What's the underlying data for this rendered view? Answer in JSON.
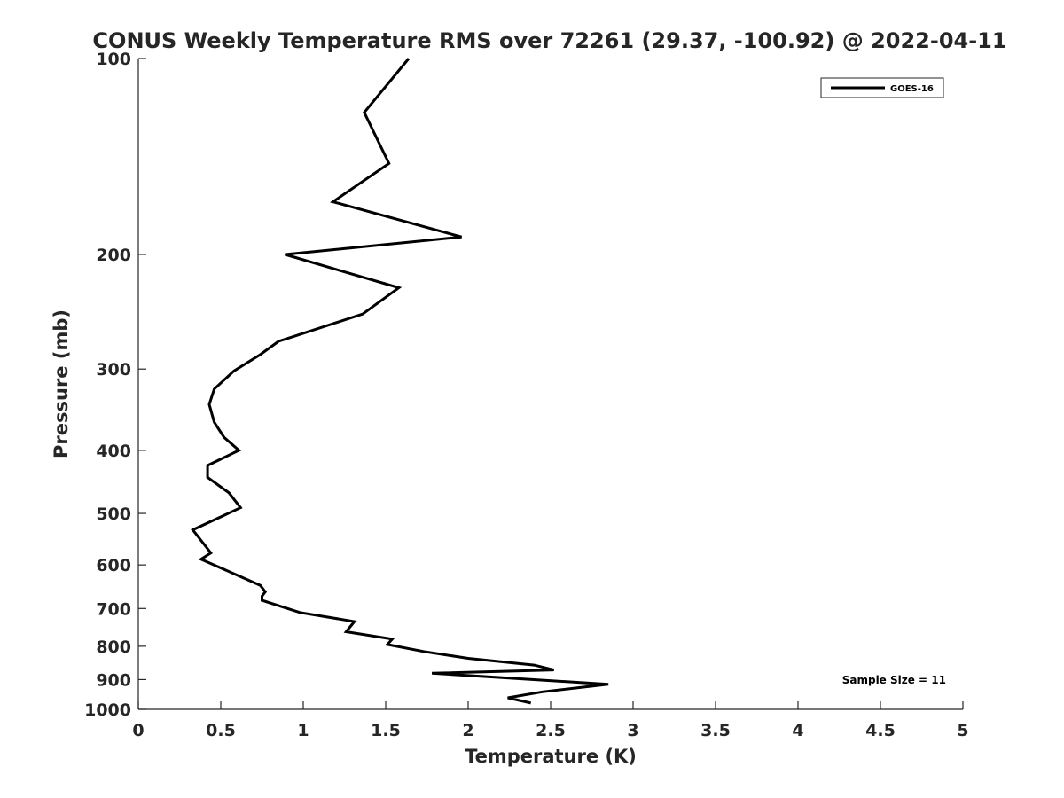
{
  "chart_data": {
    "type": "line",
    "title": "CONUS Weekly Temperature RMS over 72261 (29.37, -100.92) @ 2022-04-11",
    "xlabel": "Temperature (K)",
    "ylabel": "Pressure (mb)",
    "xlim": [
      0,
      5
    ],
    "ylim": [
      100,
      1000
    ],
    "y_scale": "log",
    "y_reversed": true,
    "grid": false,
    "legend_position": "top-right",
    "x_ticks": [
      "0",
      "0.5",
      "1",
      "1.5",
      "2",
      "2.5",
      "3",
      "3.5",
      "4",
      "4.5",
      "5"
    ],
    "x_tick_values": [
      0,
      0.5,
      1,
      1.5,
      2,
      2.5,
      3,
      3.5,
      4,
      4.5,
      5
    ],
    "y_ticks": [
      "100",
      "200",
      "300",
      "400",
      "500",
      "600",
      "700",
      "800",
      "900",
      "1000"
    ],
    "y_tick_values": [
      100,
      200,
      300,
      400,
      500,
      600,
      700,
      800,
      900,
      1000
    ],
    "series": [
      {
        "name": "GOES-16",
        "color": "#000000",
        "x": [
          1.64,
          1.37,
          1.52,
          1.18,
          1.96,
          0.89,
          1.58,
          1.36,
          0.85,
          0.74,
          0.58,
          0.46,
          0.43,
          0.46,
          0.52,
          0.61,
          0.42,
          0.42,
          0.55,
          0.62,
          0.33,
          0.44,
          0.38,
          0.74,
          0.77,
          0.75,
          0.75,
          0.98,
          1.31,
          1.26,
          1.54,
          1.51,
          1.73,
          2.0,
          2.4,
          2.52,
          1.78,
          2.85,
          2.45,
          2.24,
          2.38
        ],
        "y": [
          100,
          121,
          145,
          166,
          188,
          200,
          225,
          247,
          272,
          285,
          302,
          322,
          340,
          362,
          382,
          400,
          422,
          440,
          465,
          490,
          530,
          575,
          588,
          645,
          660,
          670,
          680,
          710,
          733,
          760,
          780,
          795,
          815,
          835,
          855,
          870,
          880,
          915,
          940,
          960,
          978
        ]
      }
    ],
    "annotations": [
      {
        "text": "Sample Size = 11",
        "position": "bottom-right"
      }
    ]
  }
}
